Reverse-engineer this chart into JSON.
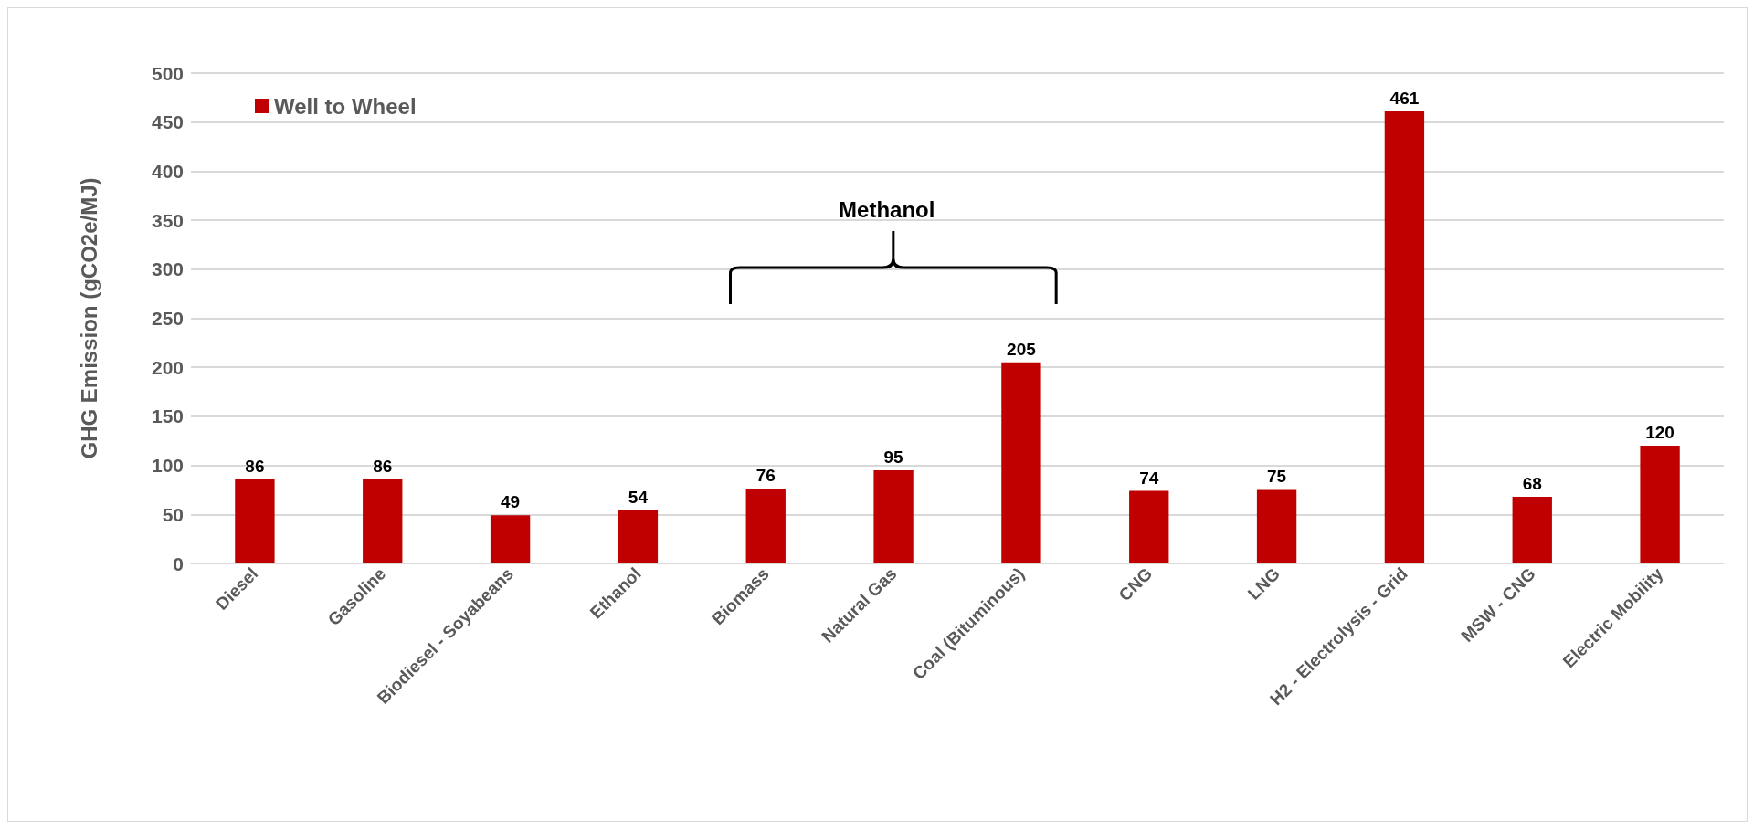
{
  "chart_data": {
    "type": "bar",
    "ylabel": "GHG Emission (gCO2e/MJ)",
    "categories": [
      "Diesel",
      "Gasoline",
      "Biodiesel - Soyabeans",
      "Ethanol",
      "Biomass",
      "Natural Gas",
      "Coal (Bituminous)",
      "CNG",
      "LNG",
      "H2 - Electrolysis - Grid",
      "MSW - CNG",
      "Electric Mobility"
    ],
    "series": [
      {
        "name": "Well to Wheel",
        "color": "#c00000",
        "values": [
          86,
          86,
          49,
          54,
          76,
          95,
          205,
          74,
          75,
          461,
          68,
          120
        ]
      }
    ],
    "ylim": [
      0,
      500
    ],
    "yticks": [
      0,
      50,
      100,
      150,
      200,
      250,
      300,
      350,
      400,
      450,
      500
    ],
    "grid": "y",
    "legend": "top left",
    "data_labels": true,
    "annotations": [
      "Methanol"
    ]
  }
}
